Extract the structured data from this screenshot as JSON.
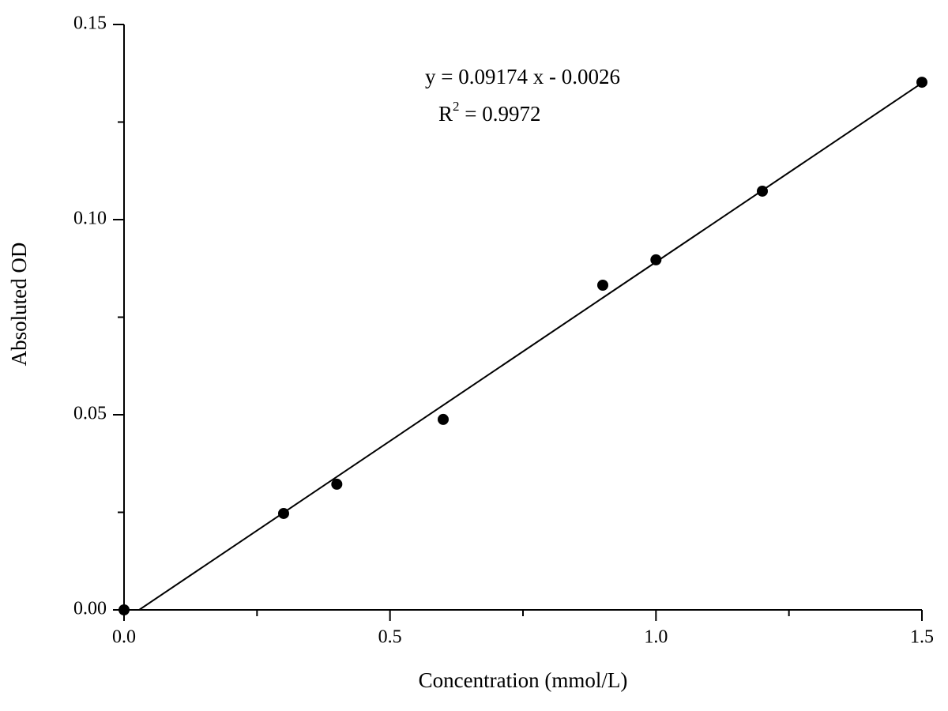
{
  "chart_data": {
    "type": "scatter",
    "x_label": "Concentration (mmol/L)",
    "y_label": "Absoluted OD",
    "x": [
      0,
      0.3,
      0.4,
      0.6,
      0.9,
      1.0,
      1.2,
      1.5
    ],
    "series": [
      {
        "color": "#000000",
        "values": [
          0,
          0.0247,
          0.0322,
          0.0488,
          0.0832,
          0.0897,
          0.1073,
          0.1352
        ]
      }
    ],
    "fit_line": {
      "slope": 0.09174,
      "intercept": -0.0026,
      "color": "#000000"
    },
    "equation_label": "y = 0.09174 x - 0.0026",
    "r_squared_label": {
      "base": "R",
      "sup": "2",
      "rest": " = 0.9972"
    },
    "xlim": [
      0,
      1.5
    ],
    "ylim": [
      0,
      0.15
    ],
    "xticks": [
      {
        "value": 0,
        "label": "0.0"
      },
      0.5,
      {
        "value": 1,
        "label": "1.0"
      },
      1.5
    ],
    "yticks": [
      {
        "value": 0,
        "label": "0.00"
      },
      {
        "value": 0.05,
        "label": "0.05"
      },
      {
        "value": 0.1,
        "label": "0.10"
      },
      {
        "value": 0.15,
        "label": "0.15"
      }
    ],
    "x_minor_ticks": [
      0.25,
      0.75,
      1.25
    ],
    "y_minor_ticks": [
      0.025,
      0.075,
      0.125
    ],
    "grid": false
  }
}
